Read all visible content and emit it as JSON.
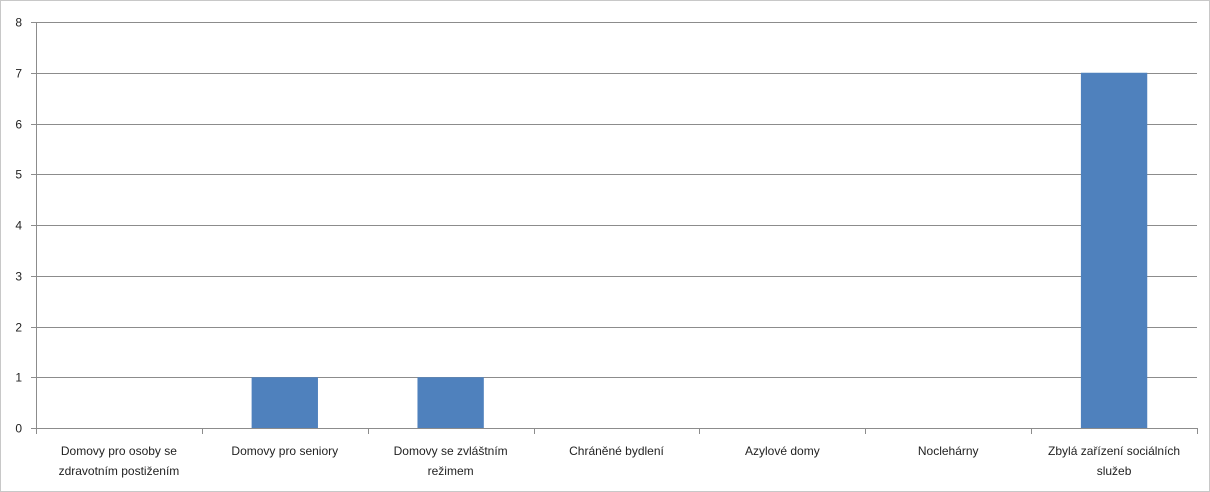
{
  "chart_data": {
    "type": "bar",
    "categories": [
      [
        "Domovy pro osoby se",
        "zdravotním postižením"
      ],
      [
        "Domovy pro seniory"
      ],
      [
        "Domovy se zvláštním",
        "režimem"
      ],
      [
        "Chráněné bydlení"
      ],
      [
        "Azylové domy"
      ],
      [
        "Noclehárny"
      ],
      [
        "Zbylá zařízení sociálních",
        "služeb"
      ]
    ],
    "values": [
      0,
      1,
      1,
      0,
      0,
      0,
      7
    ],
    "title": "",
    "xlabel": "",
    "ylabel": "",
    "ylim": [
      0,
      8
    ],
    "yticks": [
      0,
      1,
      2,
      3,
      4,
      5,
      6,
      7,
      8
    ],
    "grid": true,
    "legend": "none",
    "bar_color": "#4f81bd"
  }
}
